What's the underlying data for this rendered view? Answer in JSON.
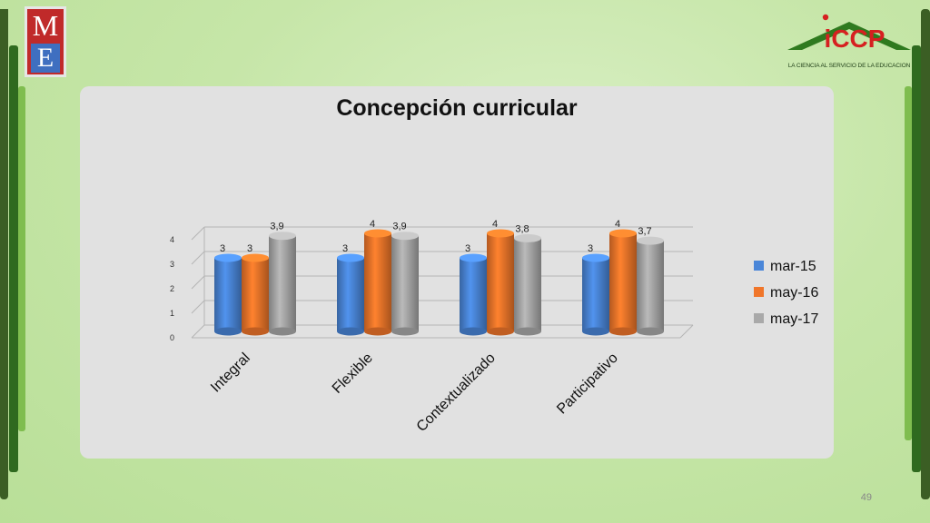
{
  "logos": {
    "me_letters": [
      "M",
      "E"
    ],
    "iccp_text": "iCCP",
    "iccp_tagline": "LA CIENCIA AL SERVICIO DE LA EDUCACION"
  },
  "page_number": "49",
  "colors": {
    "series": [
      "#4a86d8",
      "#f0762a",
      "#a9a9a9"
    ],
    "panel": "#e1e1e1",
    "accent_dark": "#2f6a1f"
  },
  "chart_data": {
    "type": "bar",
    "title": "Concepción curricular",
    "categories": [
      "Integral",
      "Flexible",
      "Contextualizado",
      "Participativo"
    ],
    "series": [
      {
        "name": "mar-15",
        "values": [
          3,
          3,
          3,
          3
        ],
        "labels": [
          "3",
          "3",
          "3",
          "3"
        ]
      },
      {
        "name": "may-16",
        "values": [
          3,
          4,
          4,
          4
        ],
        "labels": [
          "3",
          "4",
          "4",
          "4"
        ]
      },
      {
        "name": "may-17",
        "values": [
          3.9,
          3.9,
          3.8,
          3.7
        ],
        "labels": [
          "3,9",
          "3,9",
          "3,8",
          "3,7"
        ]
      }
    ],
    "y_ticks": [
      "0",
      "1",
      "2",
      "3",
      "4"
    ],
    "ylim": [
      0,
      4
    ],
    "grid": true,
    "legend_position": "right"
  }
}
